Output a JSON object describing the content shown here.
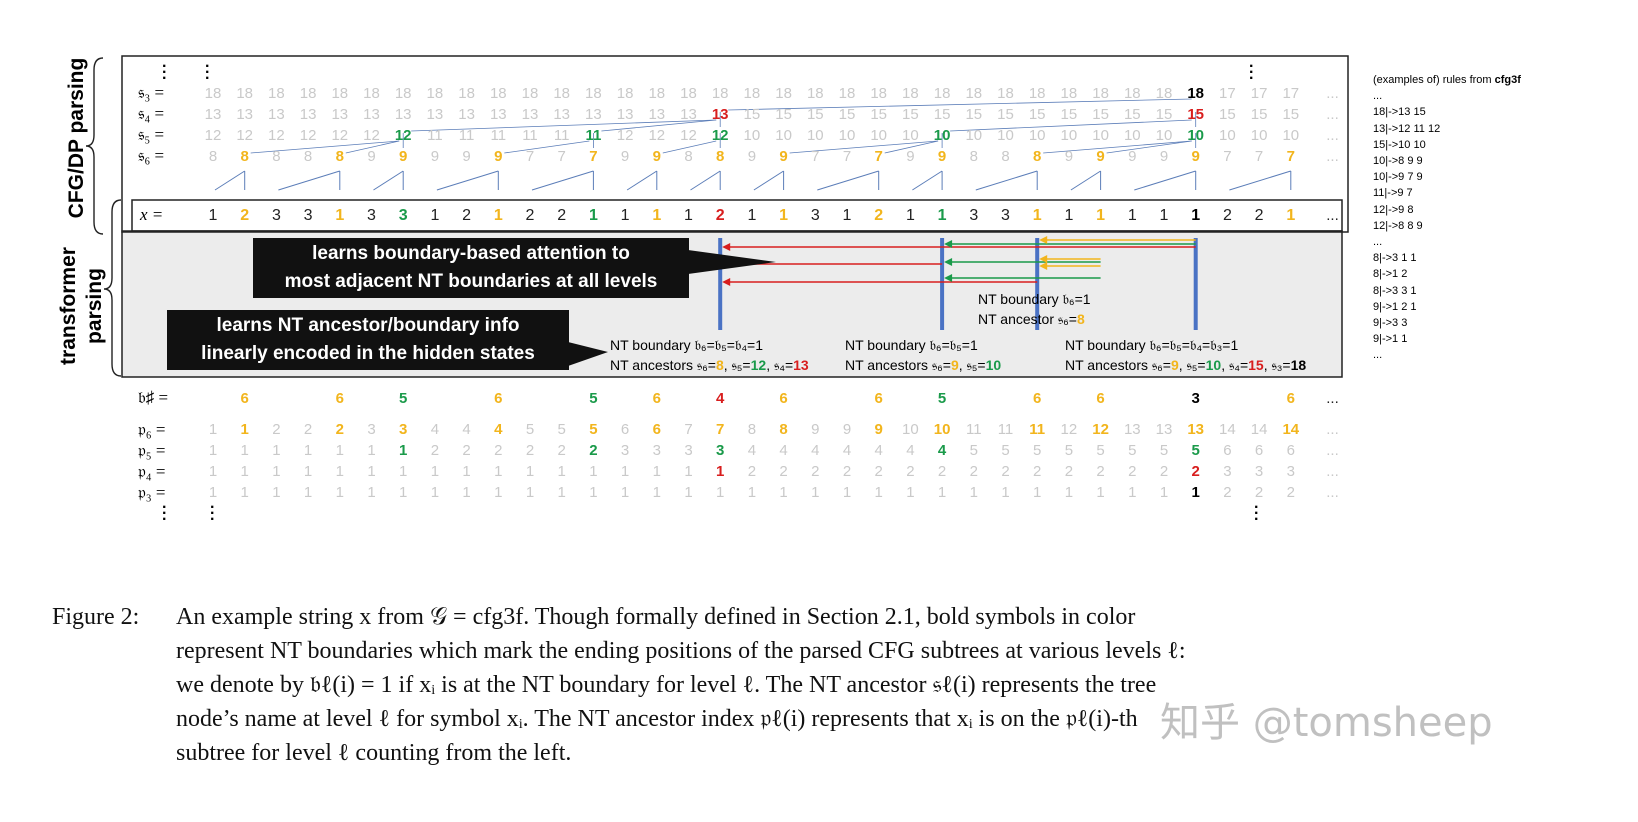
{
  "side_labels": {
    "top": "CFG/DP parsing",
    "bottom": "transformer parsing",
    "bottom_line1": "transformer",
    "bottom_line2": "parsing"
  },
  "row_labels": {
    "s3": "𝔰₃ =",
    "s4": "𝔰₄ =",
    "s5": "𝔰₅ =",
    "s6": "𝔰₆ =",
    "x": "x =",
    "bsharp": "𝔟♯ =",
    "p6": "𝔭₆ =",
    "p5": "𝔭₅ =",
    "p4": "𝔭₄ =",
    "p3": "𝔭₃ ="
  },
  "ellipsis": "...",
  "rows": {
    "s3": [
      [
        "18",
        "g"
      ],
      [
        "18",
        "g"
      ],
      [
        "18",
        "g"
      ],
      [
        "18",
        "g"
      ],
      [
        "18",
        "g"
      ],
      [
        "18",
        "g"
      ],
      [
        "18",
        "g"
      ],
      [
        "18",
        "g"
      ],
      [
        "18",
        "g"
      ],
      [
        "18",
        "g"
      ],
      [
        "18",
        "g"
      ],
      [
        "18",
        "g"
      ],
      [
        "18",
        "g"
      ],
      [
        "18",
        "g"
      ],
      [
        "18",
        "g"
      ],
      [
        "18",
        "g"
      ],
      [
        "18",
        "g"
      ],
      [
        "18",
        "g"
      ],
      [
        "18",
        "g"
      ],
      [
        "18",
        "g"
      ],
      [
        "18",
        "g"
      ],
      [
        "18",
        "g"
      ],
      [
        "18",
        "g"
      ],
      [
        "18",
        "g"
      ],
      [
        "18",
        "g"
      ],
      [
        "18",
        "g"
      ],
      [
        "18",
        "g"
      ],
      [
        "18",
        "g"
      ],
      [
        "18",
        "g"
      ],
      [
        "18",
        "g"
      ],
      [
        "18",
        "g"
      ],
      [
        "18",
        "b"
      ],
      [
        "17",
        "g"
      ],
      [
        "17",
        "g"
      ],
      [
        "17",
        "g"
      ]
    ],
    "s4": [
      [
        "13",
        "g"
      ],
      [
        "13",
        "g"
      ],
      [
        "13",
        "g"
      ],
      [
        "13",
        "g"
      ],
      [
        "13",
        "g"
      ],
      [
        "13",
        "g"
      ],
      [
        "13",
        "g"
      ],
      [
        "13",
        "g"
      ],
      [
        "13",
        "g"
      ],
      [
        "13",
        "g"
      ],
      [
        "13",
        "g"
      ],
      [
        "13",
        "g"
      ],
      [
        "13",
        "g"
      ],
      [
        "13",
        "g"
      ],
      [
        "13",
        "g"
      ],
      [
        "13",
        "g"
      ],
      [
        "13",
        "r"
      ],
      [
        "15",
        "g"
      ],
      [
        "15",
        "g"
      ],
      [
        "15",
        "g"
      ],
      [
        "15",
        "g"
      ],
      [
        "15",
        "g"
      ],
      [
        "15",
        "g"
      ],
      [
        "15",
        "g"
      ],
      [
        "15",
        "g"
      ],
      [
        "15",
        "g"
      ],
      [
        "15",
        "g"
      ],
      [
        "15",
        "g"
      ],
      [
        "15",
        "g"
      ],
      [
        "15",
        "g"
      ],
      [
        "15",
        "g"
      ],
      [
        "15",
        "r"
      ],
      [
        "15",
        "g"
      ],
      [
        "15",
        "g"
      ],
      [
        "15",
        "g"
      ]
    ],
    "s5": [
      [
        "12",
        "g"
      ],
      [
        "12",
        "g"
      ],
      [
        "12",
        "g"
      ],
      [
        "12",
        "g"
      ],
      [
        "12",
        "g"
      ],
      [
        "12",
        "g"
      ],
      [
        "12",
        "gr"
      ],
      [
        "11",
        "g"
      ],
      [
        "11",
        "g"
      ],
      [
        "11",
        "g"
      ],
      [
        "11",
        "g"
      ],
      [
        "11",
        "g"
      ],
      [
        "11",
        "gr"
      ],
      [
        "12",
        "g"
      ],
      [
        "12",
        "g"
      ],
      [
        "12",
        "g"
      ],
      [
        "12",
        "gr"
      ],
      [
        "10",
        "g"
      ],
      [
        "10",
        "g"
      ],
      [
        "10",
        "g"
      ],
      [
        "10",
        "g"
      ],
      [
        "10",
        "g"
      ],
      [
        "10",
        "g"
      ],
      [
        "10",
        "gr"
      ],
      [
        "10",
        "g"
      ],
      [
        "10",
        "g"
      ],
      [
        "10",
        "g"
      ],
      [
        "10",
        "g"
      ],
      [
        "10",
        "g"
      ],
      [
        "10",
        "g"
      ],
      [
        "10",
        "g"
      ],
      [
        "10",
        "gr"
      ],
      [
        "10",
        "g"
      ],
      [
        "10",
        "g"
      ],
      [
        "10",
        "g"
      ]
    ],
    "s6": [
      [
        "8",
        "g"
      ],
      [
        "8",
        "y"
      ],
      [
        "8",
        "g"
      ],
      [
        "8",
        "g"
      ],
      [
        "8",
        "y"
      ],
      [
        "9",
        "g"
      ],
      [
        "9",
        "y"
      ],
      [
        "9",
        "g"
      ],
      [
        "9",
        "g"
      ],
      [
        "9",
        "y"
      ],
      [
        "7",
        "g"
      ],
      [
        "7",
        "g"
      ],
      [
        "7",
        "y"
      ],
      [
        "9",
        "g"
      ],
      [
        "9",
        "y"
      ],
      [
        "8",
        "g"
      ],
      [
        "8",
        "y"
      ],
      [
        "9",
        "g"
      ],
      [
        "9",
        "y"
      ],
      [
        "7",
        "g"
      ],
      [
        "7",
        "g"
      ],
      [
        "7",
        "y"
      ],
      [
        "9",
        "g"
      ],
      [
        "9",
        "y"
      ],
      [
        "8",
        "g"
      ],
      [
        "8",
        "g"
      ],
      [
        "8",
        "y"
      ],
      [
        "9",
        "g"
      ],
      [
        "9",
        "y"
      ],
      [
        "9",
        "g"
      ],
      [
        "9",
        "g"
      ],
      [
        "9",
        "y"
      ],
      [
        "7",
        "g"
      ],
      [
        "7",
        "g"
      ],
      [
        "7",
        "y"
      ]
    ],
    "x": [
      [
        "1",
        "xn"
      ],
      [
        "2",
        "y"
      ],
      [
        "3",
        "xn"
      ],
      [
        "3",
        "xn"
      ],
      [
        "1",
        "y"
      ],
      [
        "3",
        "xn"
      ],
      [
        "3",
        "gr"
      ],
      [
        "1",
        "xn"
      ],
      [
        "2",
        "xn"
      ],
      [
        "1",
        "y"
      ],
      [
        "2",
        "xn"
      ],
      [
        "2",
        "xn"
      ],
      [
        "1",
        "gr"
      ],
      [
        "1",
        "xn"
      ],
      [
        "1",
        "y"
      ],
      [
        "1",
        "xn"
      ],
      [
        "2",
        "r"
      ],
      [
        "1",
        "xn"
      ],
      [
        "1",
        "y"
      ],
      [
        "3",
        "xn"
      ],
      [
        "1",
        "xn"
      ],
      [
        "2",
        "y"
      ],
      [
        "1",
        "xn"
      ],
      [
        "1",
        "gr"
      ],
      [
        "3",
        "xn"
      ],
      [
        "3",
        "xn"
      ],
      [
        "1",
        "y"
      ],
      [
        "1",
        "xn"
      ],
      [
        "1",
        "y"
      ],
      [
        "1",
        "xn"
      ],
      [
        "1",
        "xn"
      ],
      [
        "1",
        "b"
      ],
      [
        "2",
        "xn"
      ],
      [
        "2",
        "xn"
      ],
      [
        "1",
        "y"
      ]
    ],
    "bsharp": [
      [
        "",
        ""
      ],
      [
        "6",
        "y"
      ],
      [
        "",
        ""
      ],
      [
        "",
        ""
      ],
      [
        "6",
        "y"
      ],
      [
        "",
        ""
      ],
      [
        "5",
        "gr"
      ],
      [
        "",
        ""
      ],
      [
        "",
        ""
      ],
      [
        "6",
        "y"
      ],
      [
        "",
        ""
      ],
      [
        "",
        ""
      ],
      [
        "5",
        "gr"
      ],
      [
        "",
        ""
      ],
      [
        "6",
        "y"
      ],
      [
        "",
        ""
      ],
      [
        "4",
        "r"
      ],
      [
        "",
        ""
      ],
      [
        "6",
        "y"
      ],
      [
        "",
        ""
      ],
      [
        "",
        ""
      ],
      [
        "6",
        "y"
      ],
      [
        "",
        ""
      ],
      [
        "5",
        "gr"
      ],
      [
        "",
        ""
      ],
      [
        "",
        ""
      ],
      [
        "6",
        "y"
      ],
      [
        "",
        ""
      ],
      [
        "6",
        "y"
      ],
      [
        "",
        ""
      ],
      [
        "",
        ""
      ],
      [
        "3",
        "b"
      ],
      [
        "",
        ""
      ],
      [
        "",
        ""
      ],
      [
        "6",
        "y"
      ]
    ],
    "p6": [
      [
        "1",
        "g"
      ],
      [
        "1",
        "y"
      ],
      [
        "2",
        "g"
      ],
      [
        "2",
        "g"
      ],
      [
        "2",
        "y"
      ],
      [
        "3",
        "g"
      ],
      [
        "3",
        "y"
      ],
      [
        "4",
        "g"
      ],
      [
        "4",
        "g"
      ],
      [
        "4",
        "y"
      ],
      [
        "5",
        "g"
      ],
      [
        "5",
        "g"
      ],
      [
        "5",
        "y"
      ],
      [
        "6",
        "g"
      ],
      [
        "6",
        "y"
      ],
      [
        "7",
        "g"
      ],
      [
        "7",
        "y"
      ],
      [
        "8",
        "g"
      ],
      [
        "8",
        "y"
      ],
      [
        "9",
        "g"
      ],
      [
        "9",
        "g"
      ],
      [
        "9",
        "y"
      ],
      [
        "10",
        "g"
      ],
      [
        "10",
        "y"
      ],
      [
        "11",
        "g"
      ],
      [
        "11",
        "g"
      ],
      [
        "11",
        "y"
      ],
      [
        "12",
        "g"
      ],
      [
        "12",
        "y"
      ],
      [
        "13",
        "g"
      ],
      [
        "13",
        "g"
      ],
      [
        "13",
        "y"
      ],
      [
        "14",
        "g"
      ],
      [
        "14",
        "g"
      ],
      [
        "14",
        "y"
      ]
    ],
    "p5": [
      [
        "1",
        "g"
      ],
      [
        "1",
        "g"
      ],
      [
        "1",
        "g"
      ],
      [
        "1",
        "g"
      ],
      [
        "1",
        "g"
      ],
      [
        "1",
        "g"
      ],
      [
        "1",
        "gr"
      ],
      [
        "2",
        "g"
      ],
      [
        "2",
        "g"
      ],
      [
        "2",
        "g"
      ],
      [
        "2",
        "g"
      ],
      [
        "2",
        "g"
      ],
      [
        "2",
        "gr"
      ],
      [
        "3",
        "g"
      ],
      [
        "3",
        "g"
      ],
      [
        "3",
        "g"
      ],
      [
        "3",
        "gr"
      ],
      [
        "4",
        "g"
      ],
      [
        "4",
        "g"
      ],
      [
        "4",
        "g"
      ],
      [
        "4",
        "g"
      ],
      [
        "4",
        "g"
      ],
      [
        "4",
        "g"
      ],
      [
        "4",
        "gr"
      ],
      [
        "5",
        "g"
      ],
      [
        "5",
        "g"
      ],
      [
        "5",
        "g"
      ],
      [
        "5",
        "g"
      ],
      [
        "5",
        "g"
      ],
      [
        "5",
        "g"
      ],
      [
        "5",
        "g"
      ],
      [
        "5",
        "gr"
      ],
      [
        "6",
        "g"
      ],
      [
        "6",
        "g"
      ],
      [
        "6",
        "g"
      ]
    ],
    "p4": [
      [
        "1",
        "g"
      ],
      [
        "1",
        "g"
      ],
      [
        "1",
        "g"
      ],
      [
        "1",
        "g"
      ],
      [
        "1",
        "g"
      ],
      [
        "1",
        "g"
      ],
      [
        "1",
        "g"
      ],
      [
        "1",
        "g"
      ],
      [
        "1",
        "g"
      ],
      [
        "1",
        "g"
      ],
      [
        "1",
        "g"
      ],
      [
        "1",
        "g"
      ],
      [
        "1",
        "g"
      ],
      [
        "1",
        "g"
      ],
      [
        "1",
        "g"
      ],
      [
        "1",
        "g"
      ],
      [
        "1",
        "r"
      ],
      [
        "2",
        "g"
      ],
      [
        "2",
        "g"
      ],
      [
        "2",
        "g"
      ],
      [
        "2",
        "g"
      ],
      [
        "2",
        "g"
      ],
      [
        "2",
        "g"
      ],
      [
        "2",
        "g"
      ],
      [
        "2",
        "g"
      ],
      [
        "2",
        "g"
      ],
      [
        "2",
        "g"
      ],
      [
        "2",
        "g"
      ],
      [
        "2",
        "g"
      ],
      [
        "2",
        "g"
      ],
      [
        "2",
        "g"
      ],
      [
        "2",
        "r"
      ],
      [
        "3",
        "g"
      ],
      [
        "3",
        "g"
      ],
      [
        "3",
        "g"
      ]
    ],
    "p3": [
      [
        "1",
        "g"
      ],
      [
        "1",
        "g"
      ],
      [
        "1",
        "g"
      ],
      [
        "1",
        "g"
      ],
      [
        "1",
        "g"
      ],
      [
        "1",
        "g"
      ],
      [
        "1",
        "g"
      ],
      [
        "1",
        "g"
      ],
      [
        "1",
        "g"
      ],
      [
        "1",
        "g"
      ],
      [
        "1",
        "g"
      ],
      [
        "1",
        "g"
      ],
      [
        "1",
        "g"
      ],
      [
        "1",
        "g"
      ],
      [
        "1",
        "g"
      ],
      [
        "1",
        "g"
      ],
      [
        "1",
        "g"
      ],
      [
        "1",
        "g"
      ],
      [
        "1",
        "g"
      ],
      [
        "1",
        "g"
      ],
      [
        "1",
        "g"
      ],
      [
        "1",
        "g"
      ],
      [
        "1",
        "g"
      ],
      [
        "1",
        "g"
      ],
      [
        "1",
        "g"
      ],
      [
        "1",
        "g"
      ],
      [
        "1",
        "g"
      ],
      [
        "1",
        "g"
      ],
      [
        "1",
        "g"
      ],
      [
        "1",
        "g"
      ],
      [
        "1",
        "g"
      ],
      [
        "1",
        "b"
      ],
      [
        "2",
        "g"
      ],
      [
        "2",
        "g"
      ],
      [
        "2",
        "g"
      ]
    ]
  },
  "callouts": {
    "boundary_attention": "learns boundary-based attention to most adjacent NT boundaries at all levels",
    "boundary_attention_l1": "learns boundary-based attention to",
    "boundary_attention_l2": "most adjacent NT boundaries at all levels",
    "ancestor_info": "learns NT ancestor/boundary info linearly encoded in the hidden states",
    "ancestor_info_l1": "learns NT ancestor/boundary info",
    "ancestor_info_l2": "linearly encoded in the hidden states"
  },
  "notes": {
    "n1_boundary": "NT boundary 𝔟₆=𝔟₅=𝔟₄=1",
    "n1_anc_prefix": "NT ancestors 𝔰₆=",
    "n1_v6": "8",
    "n1_mid1": ", 𝔰₅=",
    "n1_v5": "12",
    "n1_mid2": ", 𝔰₄=",
    "n1_v4": "13",
    "n2_boundary": "NT boundary 𝔟₆=𝔟₅=1",
    "n2_anc_prefix": "NT ancestors 𝔰₆=",
    "n2_v6": "9",
    "n2_mid1": ", 𝔰₅=",
    "n2_v5": "10",
    "n3_boundary": "NT boundary 𝔟₆=1",
    "n3_anc_prefix": "NT ancestor 𝔰₆=",
    "n3_v6": "8",
    "n4_boundary": "NT boundary 𝔟₆=𝔟₅=𝔟₄=𝔟₃=1",
    "n4_anc_prefix": "NT ancestors 𝔰₆=",
    "n4_v6": "9",
    "n4_mid1": ", 𝔰₅=",
    "n4_v5": "10",
    "n4_mid2": ", 𝔰₄=",
    "n4_v4": "15",
    "n4_mid3": ", 𝔰₃=",
    "n4_v3": "18"
  },
  "rules": {
    "title_prefix": "(examples of) rules from ",
    "title_bold": "cfg3f",
    "items": [
      "...",
      "18|->13 15",
      "13|->12 11 12",
      "15|->10 10",
      "10|->8 9 9",
      "10|->9 7 9",
      "11|->9 7",
      "12|->9 8",
      "12|->8 8 9",
      "...",
      "8|->3 1 1",
      "8|->1 2",
      "8|->3 3 1",
      "9|->1 2 1",
      "9|->3 3",
      "9|->1 1",
      "..."
    ]
  },
  "caption": {
    "lead": "Figure 2:",
    "line1": "An example string x from 𝒢 = cfg3f.  Though formally defined in Section 2.1, bold symbols in color",
    "line2": "represent NT boundaries which mark the ending positions of the parsed CFG subtrees at various levels ℓ:",
    "line3": "we denote by 𝔟ℓ(i) = 1 if xᵢ is at the NT boundary for level ℓ. The NT ancestor 𝔰ℓ(i) represents the tree",
    "line4": "node’s name at level ℓ for symbol xᵢ. The NT ancestor index 𝔭ℓ(i) represents that xᵢ is on the 𝔭ℓ(i)-th",
    "line5": "subtree for level ℓ counting from the left."
  },
  "watermark": "知乎 @tomsheep",
  "colors": {
    "yellow": "#f2b51d",
    "green": "#1a9a4a",
    "red": "#d81e1e",
    "blue_bar": "#4a72c4",
    "tree_line": "#5b7db8",
    "panel_bg": "#ececec"
  }
}
